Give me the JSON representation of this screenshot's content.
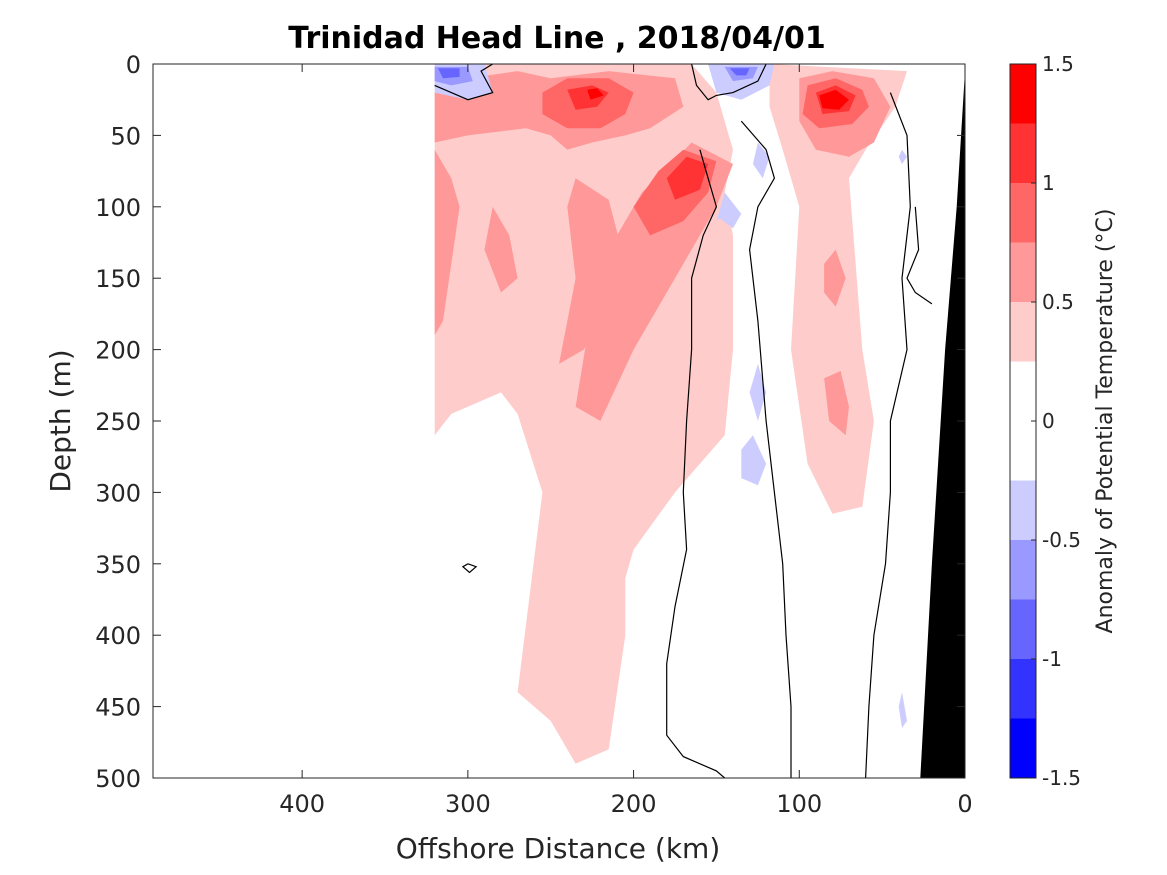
{
  "chart_data": {
    "type": "heatmap",
    "subtype": "filled-contour section",
    "title": "Trinidad Head Line , 2018/04/01",
    "xlabel": "Offshore Distance (km)",
    "ylabel": "Depth (m)",
    "xlim": [
      490,
      0
    ],
    "x_reversed": true,
    "ylim": [
      0,
      500
    ],
    "y_reversed": true,
    "x_ticks": [
      400,
      300,
      200,
      100,
      0
    ],
    "y_ticks": [
      0,
      50,
      100,
      150,
      200,
      250,
      300,
      350,
      400,
      450,
      500
    ],
    "colorbar": {
      "label": "Anomaly of Potential Temperature (°C)",
      "tick_values": [
        -1.5,
        -1,
        -0.5,
        0,
        0.5,
        1,
        1.5
      ],
      "tick_labels": [
        "-1.5",
        "-1",
        "-0.5",
        "0",
        "0.5",
        "1",
        "1.5"
      ],
      "levels": [
        -1.5,
        -1.25,
        -1.0,
        -0.75,
        -0.5,
        -0.25,
        0.25,
        0.5,
        0.75,
        1.0,
        1.25,
        1.5
      ],
      "colors": [
        "#0000ff",
        "#3333ff",
        "#6666ff",
        "#9999ff",
        "#ccccff",
        "#ffffff",
        "#ffcccc",
        "#ff9999",
        "#ff6666",
        "#ff3333",
        "#ff0000"
      ]
    },
    "bathymetry_color": "#000000",
    "data_coverage_x": [
      320,
      0
    ],
    "contour_line_level": 0,
    "regions": [
      {
        "level": 0.25,
        "points": [
          [
            320,
            0
          ],
          [
            165,
            0
          ],
          [
            150,
            20
          ],
          [
            140,
            60
          ],
          [
            145,
            90
          ],
          [
            140,
            120
          ],
          [
            140,
            200
          ],
          [
            145,
            260
          ],
          [
            175,
            300
          ],
          [
            200,
            340
          ],
          [
            205,
            360
          ],
          [
            205,
            400
          ],
          [
            215,
            480
          ],
          [
            235,
            490
          ],
          [
            250,
            460
          ],
          [
            270,
            440
          ],
          [
            255,
            300
          ],
          [
            270,
            245
          ],
          [
            280,
            230
          ],
          [
            310,
            245
          ],
          [
            320,
            260
          ]
        ]
      },
      {
        "level": 0.25,
        "points": [
          [
            118,
            0
          ],
          [
            35,
            5
          ],
          [
            42,
            30
          ],
          [
            60,
            60
          ],
          [
            70,
            80
          ],
          [
            62,
            200
          ],
          [
            55,
            250
          ],
          [
            62,
            310
          ],
          [
            80,
            315
          ],
          [
            95,
            280
          ],
          [
            105,
            200
          ],
          [
            100,
            100
          ],
          [
            110,
            60
          ],
          [
            118,
            30
          ]
        ]
      },
      {
        "level": 0.5,
        "points": [
          [
            320,
            20
          ],
          [
            300,
            10
          ],
          [
            270,
            5
          ],
          [
            250,
            10
          ],
          [
            215,
            5
          ],
          [
            175,
            10
          ],
          [
            170,
            30
          ],
          [
            190,
            45
          ],
          [
            205,
            50
          ],
          [
            225,
            55
          ],
          [
            240,
            60
          ],
          [
            250,
            50
          ],
          [
            265,
            45
          ],
          [
            300,
            50
          ],
          [
            320,
            55
          ]
        ]
      },
      {
        "level": 0.5,
        "points": [
          [
            235,
            80
          ],
          [
            215,
            95
          ],
          [
            205,
            140
          ],
          [
            215,
            170
          ],
          [
            230,
            200
          ],
          [
            245,
            210
          ],
          [
            235,
            150
          ],
          [
            240,
            100
          ]
        ]
      },
      {
        "level": 0.5,
        "points": [
          [
            165,
            55
          ],
          [
            140,
            70
          ],
          [
            150,
            100
          ],
          [
            175,
            150
          ],
          [
            200,
            200
          ],
          [
            220,
            250
          ],
          [
            235,
            240
          ],
          [
            225,
            170
          ],
          [
            210,
            120
          ],
          [
            195,
            90
          ]
        ]
      },
      {
        "level": 0.5,
        "points": [
          [
            320,
            60
          ],
          [
            310,
            80
          ],
          [
            305,
            100
          ],
          [
            310,
            140
          ],
          [
            315,
            180
          ],
          [
            320,
            190
          ]
        ]
      },
      {
        "level": 0.5,
        "points": [
          [
            285,
            100
          ],
          [
            275,
            120
          ],
          [
            270,
            150
          ],
          [
            280,
            160
          ],
          [
            290,
            130
          ]
        ]
      },
      {
        "level": 0.5,
        "points": [
          [
            100,
            10
          ],
          [
            80,
            5
          ],
          [
            55,
            10
          ],
          [
            45,
            30
          ],
          [
            55,
            55
          ],
          [
            70,
            65
          ],
          [
            90,
            60
          ],
          [
            100,
            40
          ]
        ]
      },
      {
        "level": 0.5,
        "points": [
          [
            85,
            140
          ],
          [
            78,
            130
          ],
          [
            72,
            150
          ],
          [
            78,
            170
          ],
          [
            85,
            160
          ]
        ]
      },
      {
        "level": 0.5,
        "points": [
          [
            85,
            220
          ],
          [
            75,
            215
          ],
          [
            70,
            240
          ],
          [
            72,
            260
          ],
          [
            82,
            250
          ]
        ]
      },
      {
        "level": 0.75,
        "points": [
          [
            255,
            20
          ],
          [
            240,
            10
          ],
          [
            215,
            10
          ],
          [
            200,
            20
          ],
          [
            205,
            35
          ],
          [
            220,
            45
          ],
          [
            240,
            45
          ],
          [
            255,
            35
          ]
        ]
      },
      {
        "level": 0.75,
        "points": [
          [
            170,
            60
          ],
          [
            150,
            68
          ],
          [
            155,
            90
          ],
          [
            170,
            110
          ],
          [
            190,
            120
          ],
          [
            200,
            100
          ],
          [
            185,
            75
          ]
        ]
      },
      {
        "level": 0.75,
        "points": [
          [
            95,
            15
          ],
          [
            78,
            10
          ],
          [
            62,
            18
          ],
          [
            58,
            30
          ],
          [
            68,
            42
          ],
          [
            88,
            45
          ],
          [
            98,
            35
          ]
        ]
      },
      {
        "level": 1.0,
        "points": [
          [
            240,
            18
          ],
          [
            225,
            15
          ],
          [
            215,
            20
          ],
          [
            222,
            30
          ],
          [
            235,
            32
          ]
        ]
      },
      {
        "level": 1.0,
        "points": [
          [
            168,
            65
          ],
          [
            155,
            70
          ],
          [
            160,
            88
          ],
          [
            175,
            95
          ],
          [
            180,
            80
          ]
        ]
      },
      {
        "level": 1.0,
        "points": [
          [
            90,
            20
          ],
          [
            78,
            15
          ],
          [
            66,
            22
          ],
          [
            70,
            33
          ],
          [
            86,
            35
          ]
        ]
      },
      {
        "level": 1.25,
        "points": [
          [
            88,
            22
          ],
          [
            78,
            18
          ],
          [
            70,
            25
          ],
          [
            76,
            32
          ],
          [
            86,
            31
          ]
        ]
      },
      {
        "level": 1.25,
        "points": [
          [
            228,
            18
          ],
          [
            222,
            17
          ],
          [
            218,
            22
          ],
          [
            226,
            25
          ]
        ]
      },
      {
        "level": -0.25,
        "points": [
          [
            320,
            0
          ],
          [
            290,
            0
          ],
          [
            285,
            20
          ],
          [
            300,
            25
          ],
          [
            320,
            20
          ]
        ]
      },
      {
        "level": -0.25,
        "points": [
          [
            155,
            0
          ],
          [
            115,
            0
          ],
          [
            118,
            15
          ],
          [
            135,
            25
          ],
          [
            150,
            20
          ]
        ]
      },
      {
        "level": -0.25,
        "points": [
          [
            145,
            90
          ],
          [
            135,
            105
          ],
          [
            140,
            115
          ],
          [
            148,
            108
          ]
        ]
      },
      {
        "level": -0.25,
        "points": [
          [
            125,
            55
          ],
          [
            118,
            65
          ],
          [
            122,
            80
          ],
          [
            128,
            70
          ]
        ]
      },
      {
        "level": -0.25,
        "points": [
          [
            145,
            90
          ],
          [
            140,
            100
          ],
          [
            150,
            110
          ]
        ]
      },
      {
        "level": -0.25,
        "points": [
          [
            125,
            210
          ],
          [
            120,
            230
          ],
          [
            125,
            250
          ],
          [
            130,
            230
          ]
        ]
      },
      {
        "level": -0.25,
        "points": [
          [
            128,
            260
          ],
          [
            120,
            280
          ],
          [
            125,
            295
          ],
          [
            135,
            290
          ],
          [
            135,
            270
          ]
        ]
      },
      {
        "level": -0.25,
        "points": [
          [
            38,
            60
          ],
          [
            35,
            65
          ],
          [
            38,
            70
          ],
          [
            40,
            65
          ]
        ]
      },
      {
        "level": -0.25,
        "points": [
          [
            38,
            440
          ],
          [
            35,
            460
          ],
          [
            38,
            465
          ],
          [
            40,
            450
          ]
        ]
      },
      {
        "level": -0.5,
        "points": [
          [
            320,
            2
          ],
          [
            300,
            2
          ],
          [
            297,
            12
          ],
          [
            310,
            15
          ],
          [
            320,
            12
          ]
        ]
      },
      {
        "level": -0.5,
        "points": [
          [
            145,
            2
          ],
          [
            125,
            2
          ],
          [
            128,
            10
          ],
          [
            140,
            12
          ]
        ]
      },
      {
        "level": -0.75,
        "points": [
          [
            318,
            3
          ],
          [
            305,
            3
          ],
          [
            305,
            9
          ],
          [
            315,
            10
          ]
        ]
      },
      {
        "level": -0.75,
        "points": [
          [
            142,
            3
          ],
          [
            130,
            3
          ],
          [
            132,
            8
          ],
          [
            138,
            8
          ]
        ]
      }
    ],
    "contour_lines": [
      [
        [
          320,
          15
        ],
        [
          300,
          25
        ],
        [
          285,
          20
        ],
        [
          292,
          5
        ],
        [
          285,
          0
        ]
      ],
      [
        [
          165,
          0
        ],
        [
          162,
          15
        ],
        [
          155,
          25
        ],
        [
          150,
          22
        ],
        [
          140,
          20
        ],
        [
          125,
          12
        ],
        [
          120,
          0
        ]
      ],
      [
        [
          160,
          60
        ],
        [
          155,
          80
        ],
        [
          150,
          100
        ],
        [
          158,
          120
        ],
        [
          165,
          150
        ],
        [
          165,
          200
        ],
        [
          168,
          250
        ],
        [
          170,
          300
        ],
        [
          168,
          340
        ],
        [
          175,
          380
        ],
        [
          180,
          420
        ],
        [
          180,
          470
        ],
        [
          170,
          485
        ],
        [
          150,
          495
        ],
        [
          145,
          500
        ]
      ],
      [
        [
          135,
          40
        ],
        [
          120,
          60
        ],
        [
          115,
          80
        ],
        [
          125,
          100
        ],
        [
          130,
          130
        ],
        [
          125,
          180
        ],
        [
          120,
          250
        ],
        [
          115,
          300
        ],
        [
          110,
          350
        ],
        [
          108,
          400
        ],
        [
          105,
          450
        ],
        [
          105,
          500
        ]
      ],
      [
        [
          45,
          20
        ],
        [
          35,
          50
        ],
        [
          33,
          100
        ],
        [
          38,
          150
        ],
        [
          35,
          200
        ],
        [
          45,
          250
        ],
        [
          45,
          300
        ],
        [
          48,
          350
        ],
        [
          55,
          400
        ],
        [
          58,
          450
        ],
        [
          60,
          500
        ]
      ],
      [
        [
          30,
          100
        ],
        [
          28,
          130
        ],
        [
          35,
          150
        ],
        [
          30,
          160
        ],
        [
          20,
          168
        ]
      ],
      [
        [
          300,
          350
        ],
        [
          295,
          352
        ],
        [
          299,
          356
        ],
        [
          303,
          352
        ],
        [
          300,
          350
        ]
      ]
    ],
    "bathymetry": [
      [
        0,
        0
      ],
      [
        0,
        500
      ],
      [
        27,
        500
      ],
      [
        20,
        350
      ],
      [
        12,
        200
      ],
      [
        5,
        100
      ],
      [
        0,
        5
      ]
    ]
  }
}
